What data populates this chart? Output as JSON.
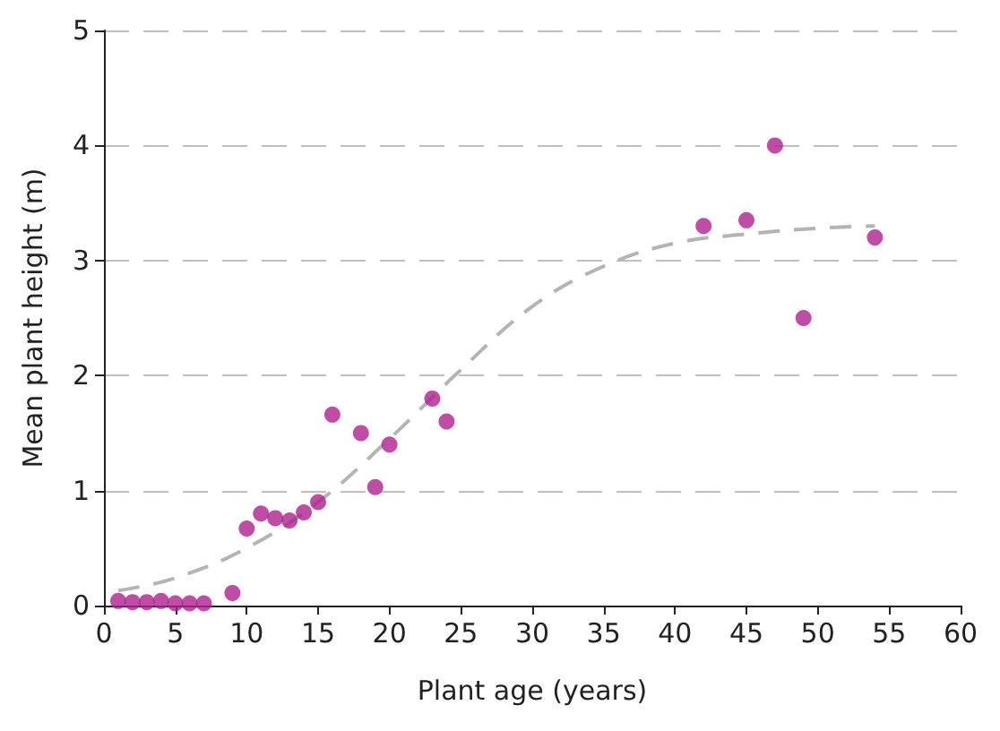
{
  "chart_data": {
    "type": "scatter",
    "xlabel": "Plant age (years)",
    "ylabel": "Mean plant height (m)",
    "xlim": [
      0,
      60
    ],
    "xticks": [
      0,
      5,
      10,
      15,
      20,
      25,
      30,
      35,
      40,
      45,
      50,
      55,
      60
    ],
    "ylim": [
      0,
      5
    ],
    "yticks": [
      0,
      1,
      2,
      3,
      4,
      5
    ],
    "grid": "y",
    "series": [
      {
        "color": "#b0208e",
        "marker": "circle",
        "x": [
          1,
          2,
          3,
          4,
          5,
          6,
          7,
          9,
          10,
          11,
          12,
          13,
          14,
          15,
          16,
          18,
          19,
          20,
          23,
          24,
          42,
          45,
          47,
          49,
          54
        ],
        "values": [
          0.04,
          0.03,
          0.03,
          0.04,
          0.02,
          0.02,
          0.02,
          0.11,
          0.67,
          0.8,
          0.76,
          0.74,
          0.81,
          0.9,
          1.66,
          1.5,
          1.03,
          1.4,
          1.8,
          1.6,
          3.3,
          3.35,
          4.0,
          2.5,
          3.2
        ]
      },
      {
        "type": "line",
        "color": "#b4b4b4",
        "marker": "none",
        "line_style": "dashed",
        "x": [
          1,
          5,
          10,
          15,
          20,
          25,
          30,
          35,
          40,
          45,
          50,
          54
        ],
        "values": [
          0.13,
          0.24,
          0.5,
          0.9,
          1.45,
          2.05,
          2.6,
          2.95,
          3.15,
          3.23,
          3.28,
          3.3
        ]
      }
    ]
  }
}
